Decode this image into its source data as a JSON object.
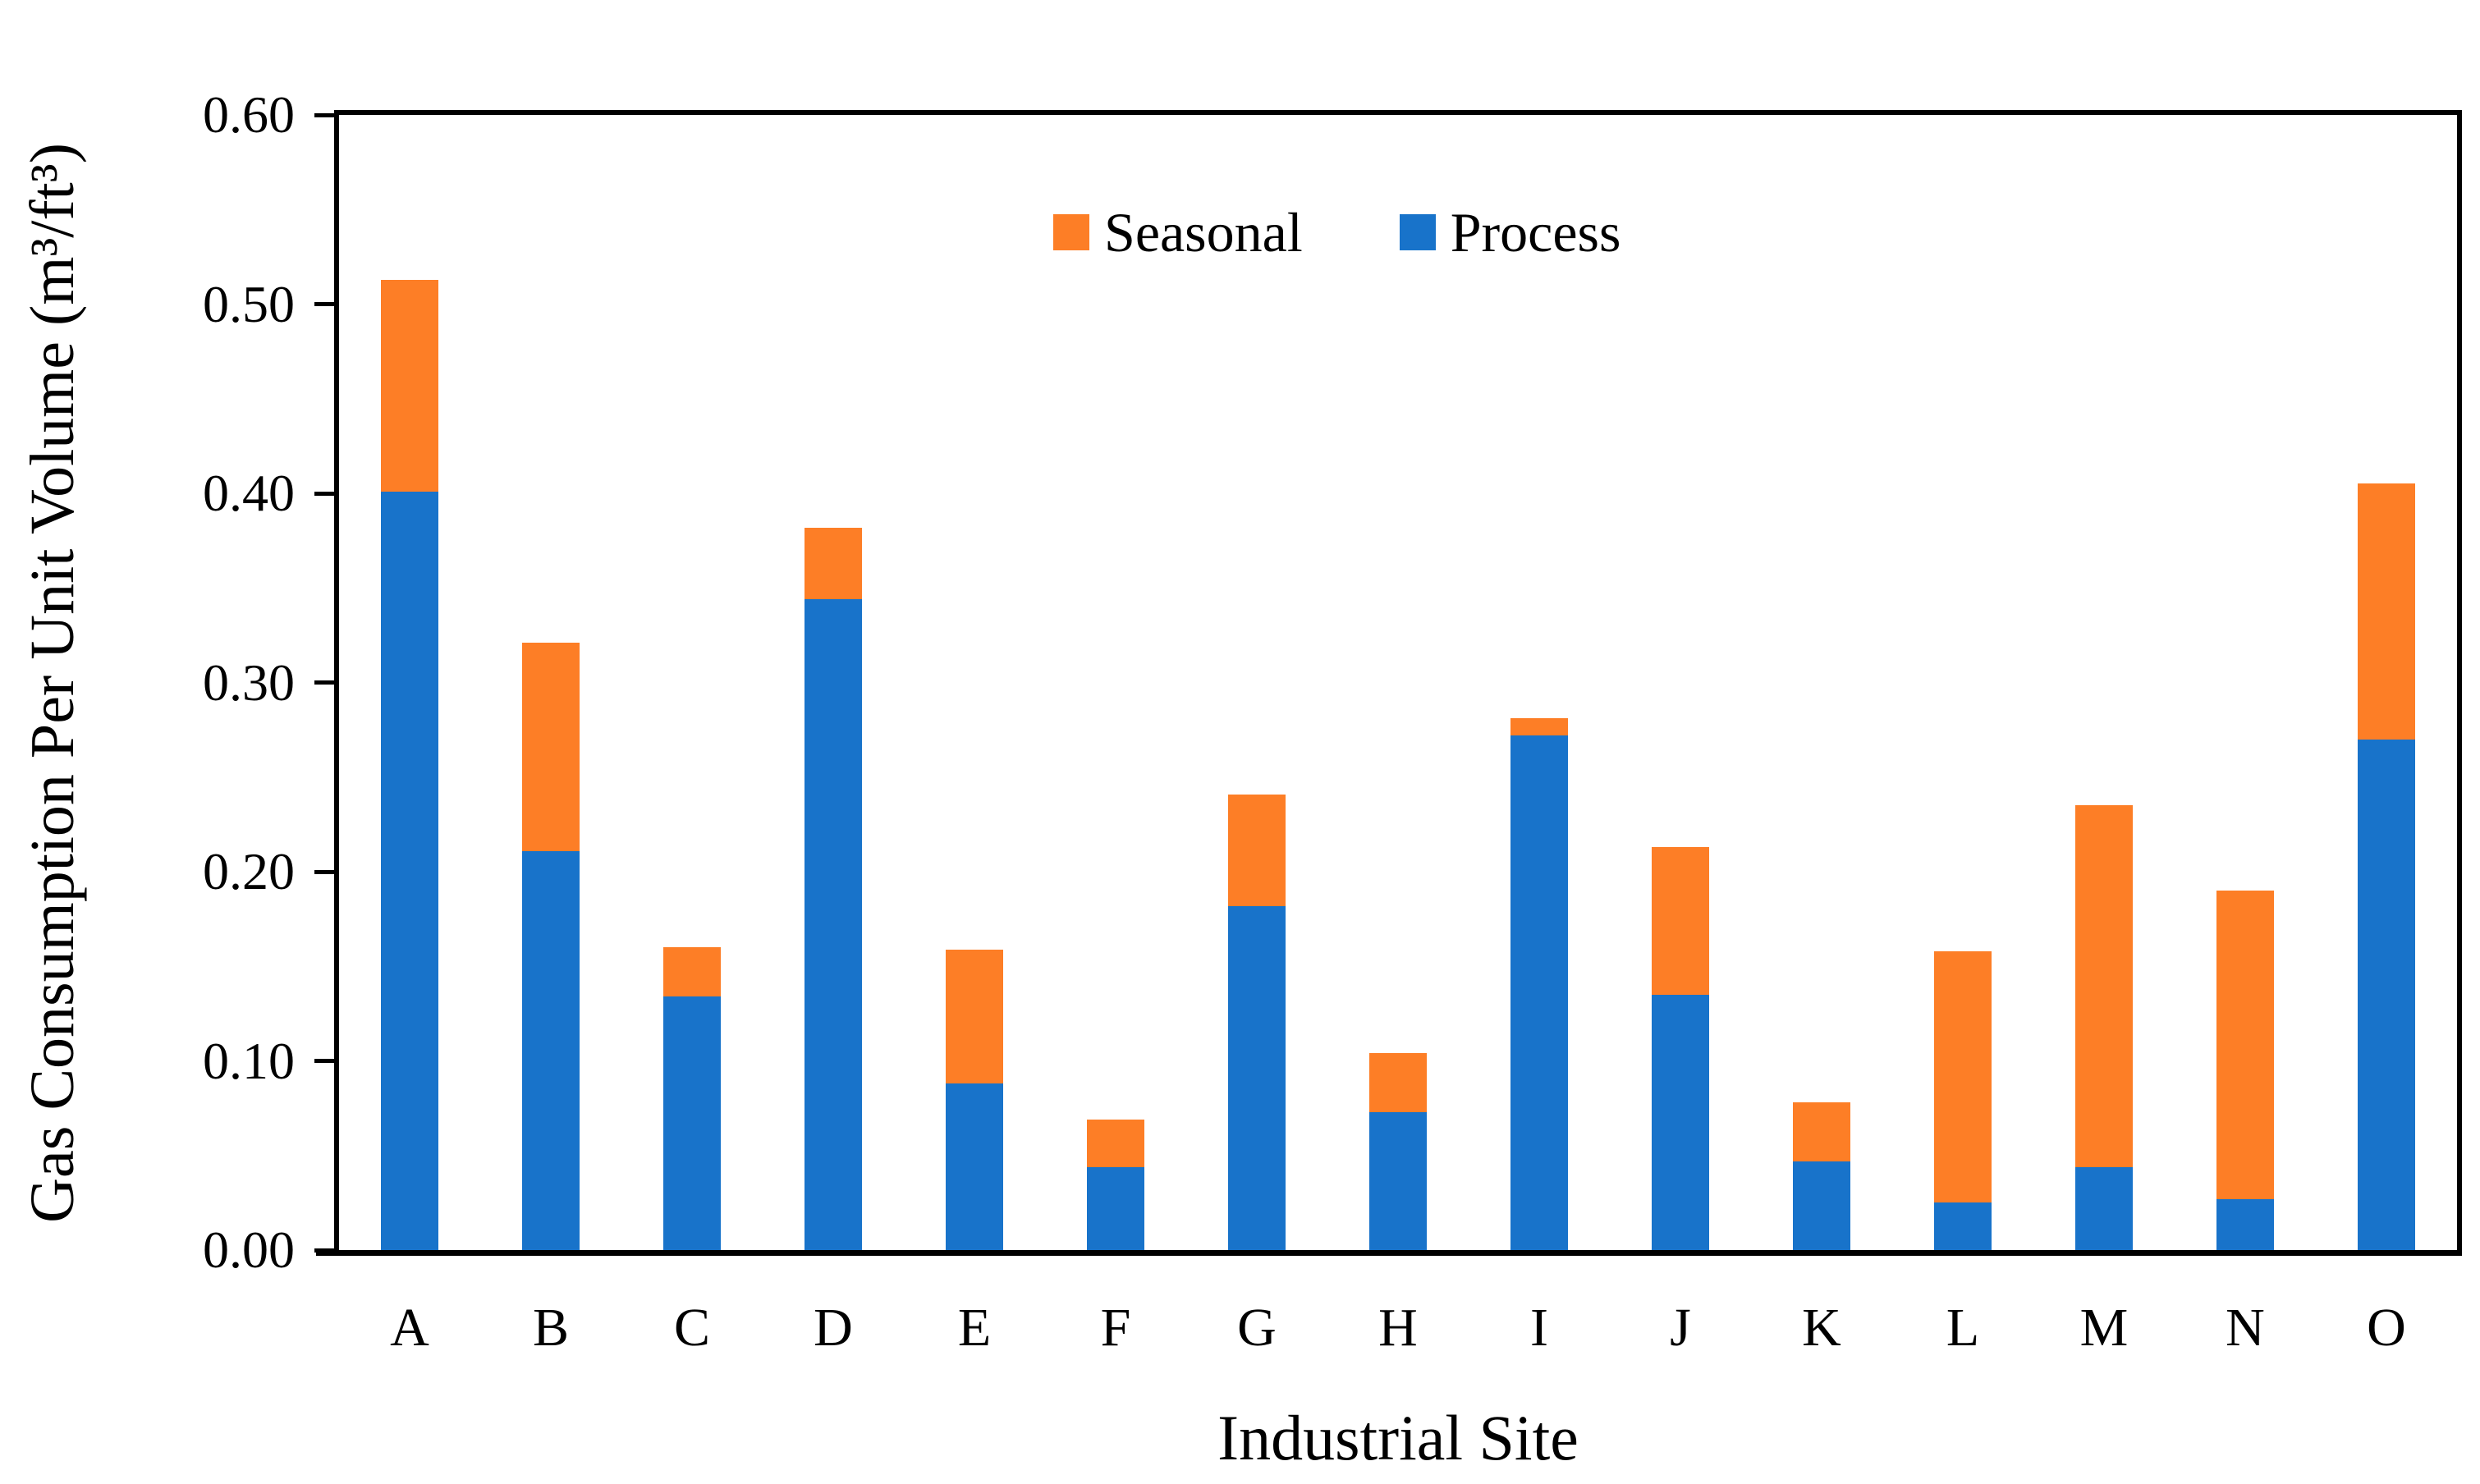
{
  "chart_data": {
    "type": "bar",
    "stacked": true,
    "title": "",
    "xlabel": "Industrial Site",
    "ylabel": "Gas Consumption Per Unit Volume (m³/ft³)",
    "ylim": [
      0.0,
      0.6
    ],
    "ytick_labels": [
      "0.00",
      "0.10",
      "0.20",
      "0.30",
      "0.40",
      "0.50",
      "0.60"
    ],
    "grid": false,
    "legend_position": "top-center-inside",
    "categories": [
      "A",
      "B",
      "C",
      "D",
      "E",
      "F",
      "G",
      "H",
      "I",
      "J",
      "K",
      "L",
      "M",
      "N",
      "O"
    ],
    "series": [
      {
        "name": "Process",
        "color": "#1873CA",
        "values": [
          0.401,
          0.211,
          0.134,
          0.344,
          0.088,
          0.044,
          0.182,
          0.073,
          0.272,
          0.135,
          0.047,
          0.025,
          0.044,
          0.027,
          0.27
        ]
      },
      {
        "name": "Seasonal",
        "color": "#FD7E26",
        "values": [
          0.112,
          0.11,
          0.026,
          0.038,
          0.071,
          0.025,
          0.059,
          0.031,
          0.009,
          0.078,
          0.031,
          0.133,
          0.191,
          0.163,
          0.135
        ]
      }
    ],
    "legend": [
      {
        "label": "Seasonal",
        "color": "#FD7E26"
      },
      {
        "label": "Process",
        "color": "#1873CA"
      }
    ],
    "colors": {
      "process_blue": "#1873CA",
      "seasonal_orange": "#FD7E26",
      "axis_black": "#000000"
    }
  }
}
